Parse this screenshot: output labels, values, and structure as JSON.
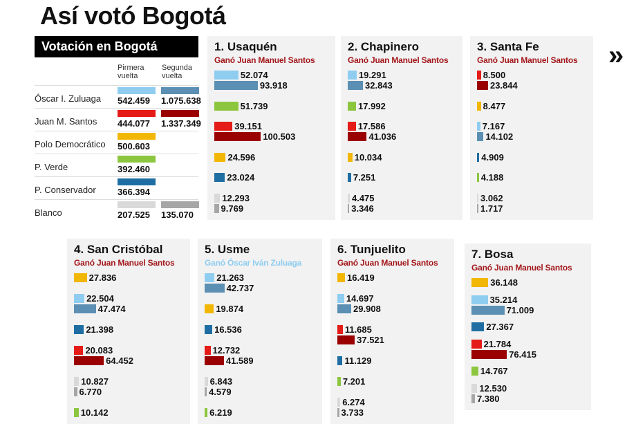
{
  "title": "Así votó Bogotá",
  "arrows": "»",
  "colors": {
    "zuluaga": [
      "#8fcdf0",
      "#5b8fb3"
    ],
    "santos": [
      "#e41b17",
      "#9b0000"
    ],
    "polo": [
      "#f2b705"
    ],
    "verde": [
      "#8cc63f"
    ],
    "conservador": [
      "#1f6ea3"
    ],
    "blanco": [
      "#d9d9d9",
      "#a6a6a6"
    ],
    "winner_santos": "#a3171b",
    "winner_zuluaga": "#8fcdf0"
  },
  "summary": {
    "title": "Votación en Bogotá",
    "col1": "Pirmera vuelta",
    "col2": "Segunda vuelta",
    "rows": [
      {
        "party": "zuluaga",
        "name": "Óscar I. Zuluaga",
        "values": [
          "542.459",
          "1.075.638"
        ]
      },
      {
        "party": "santos",
        "name": "Juan M. Santos",
        "values": [
          "444.077",
          "1.337.349"
        ]
      },
      {
        "party": "polo",
        "name": "Polo Democrático",
        "values": [
          "500.603"
        ]
      },
      {
        "party": "verde",
        "name": "P. Verde",
        "values": [
          "392.460"
        ]
      },
      {
        "party": "conservador",
        "name": "P. Conservador",
        "values": [
          "366.394"
        ]
      },
      {
        "party": "blanco",
        "name": "Blanco",
        "values": [
          "207.525",
          "135.070"
        ]
      }
    ]
  },
  "chart_data": [
    {
      "type": "bar",
      "title": "1. Usaquén",
      "winner": "Ganó Juan Manuel Santos",
      "winner_party": "santos",
      "groups": [
        {
          "party": "zuluaga",
          "values": [
            "52.074",
            "93.918"
          ]
        },
        {
          "party": "verde",
          "values": [
            "51.739"
          ]
        },
        {
          "party": "santos",
          "values": [
            "39.151",
            "100.503"
          ]
        },
        {
          "party": "polo",
          "values": [
            "24.596"
          ]
        },
        {
          "party": "conservador",
          "values": [
            "23.024"
          ]
        },
        {
          "party": "blanco",
          "values": [
            "12.293",
            "9.769"
          ]
        }
      ]
    },
    {
      "type": "bar",
      "title": "2. Chapinero",
      "winner": "Ganó Juan Manuel Santos",
      "winner_party": "santos",
      "groups": [
        {
          "party": "zuluaga",
          "values": [
            "19.291",
            "32.843"
          ]
        },
        {
          "party": "verde",
          "values": [
            "17.992"
          ]
        },
        {
          "party": "santos",
          "values": [
            "17.586",
            "41.036"
          ]
        },
        {
          "party": "polo",
          "values": [
            "10.034"
          ]
        },
        {
          "party": "conservador",
          "values": [
            "7.251"
          ]
        },
        {
          "party": "blanco",
          "values": [
            "4.475",
            "3.346"
          ]
        }
      ]
    },
    {
      "type": "bar",
      "title": "3. Santa Fe",
      "winner": "Ganó Juan Manuel Santos",
      "winner_party": "santos",
      "groups": [
        {
          "party": "santos",
          "values": [
            "8.500",
            "23.844"
          ]
        },
        {
          "party": "polo",
          "values": [
            "8.477"
          ]
        },
        {
          "party": "zuluaga",
          "values": [
            "7.167",
            "14.102"
          ]
        },
        {
          "party": "conservador",
          "values": [
            "4.909"
          ]
        },
        {
          "party": "verde",
          "values": [
            "4.188"
          ]
        },
        {
          "party": "blanco",
          "values": [
            "3.062",
            "1.717"
          ]
        }
      ]
    },
    {
      "type": "bar",
      "title": "4. San Cristóbal",
      "winner": "Ganó Juan Manuel Santos",
      "winner_party": "santos",
      "groups": [
        {
          "party": "polo",
          "values": [
            "27.836"
          ]
        },
        {
          "party": "zuluaga",
          "values": [
            "22.504",
            "47.474"
          ]
        },
        {
          "party": "conservador",
          "values": [
            "21.398"
          ]
        },
        {
          "party": "santos",
          "values": [
            "20.083",
            "64.452"
          ]
        },
        {
          "party": "blanco",
          "values": [
            "10.827",
            "6.770"
          ]
        },
        {
          "party": "verde",
          "values": [
            "10.142"
          ]
        }
      ]
    },
    {
      "type": "bar",
      "title": "5. Usme",
      "winner": "Ganó Óscar Iván Zuluaga",
      "winner_party": "zuluaga",
      "groups": [
        {
          "party": "zuluaga",
          "values": [
            "21.263",
            "42.737"
          ]
        },
        {
          "party": "polo",
          "values": [
            "19.874"
          ]
        },
        {
          "party": "conservador",
          "values": [
            "16.536"
          ]
        },
        {
          "party": "santos",
          "values": [
            "12.732",
            "41.589"
          ]
        },
        {
          "party": "blanco",
          "values": [
            "6.843",
            "4.579"
          ]
        },
        {
          "party": "verde",
          "values": [
            "6.219"
          ]
        }
      ]
    },
    {
      "type": "bar",
      "title": "6. Tunjuelito",
      "winner": "Ganó Juan Manuel Santos",
      "winner_party": "santos",
      "groups": [
        {
          "party": "polo",
          "values": [
            "16.419"
          ]
        },
        {
          "party": "zuluaga",
          "values": [
            "14.697",
            "29.908"
          ]
        },
        {
          "party": "santos",
          "values": [
            "11.685",
            "37.521"
          ]
        },
        {
          "party": "conservador",
          "values": [
            "11.129"
          ]
        },
        {
          "party": "verde",
          "values": [
            "7.201"
          ]
        },
        {
          "party": "blanco",
          "values": [
            "6.274",
            "3.733"
          ]
        }
      ]
    },
    {
      "type": "bar",
      "title": "7. Bosa",
      "winner": "Ganó Juan Manuel Santos",
      "winner_party": "santos",
      "groups": [
        {
          "party": "polo",
          "values": [
            "36.148"
          ]
        },
        {
          "party": "zuluaga",
          "values": [
            "35.214",
            "71.009"
          ]
        },
        {
          "party": "conservador",
          "values": [
            "27.367"
          ]
        },
        {
          "party": "santos",
          "values": [
            "21.784",
            "76.415"
          ]
        },
        {
          "party": "verde",
          "values": [
            "14.767"
          ]
        },
        {
          "party": "blanco",
          "values": [
            "12.530",
            "7.380"
          ]
        }
      ]
    }
  ]
}
